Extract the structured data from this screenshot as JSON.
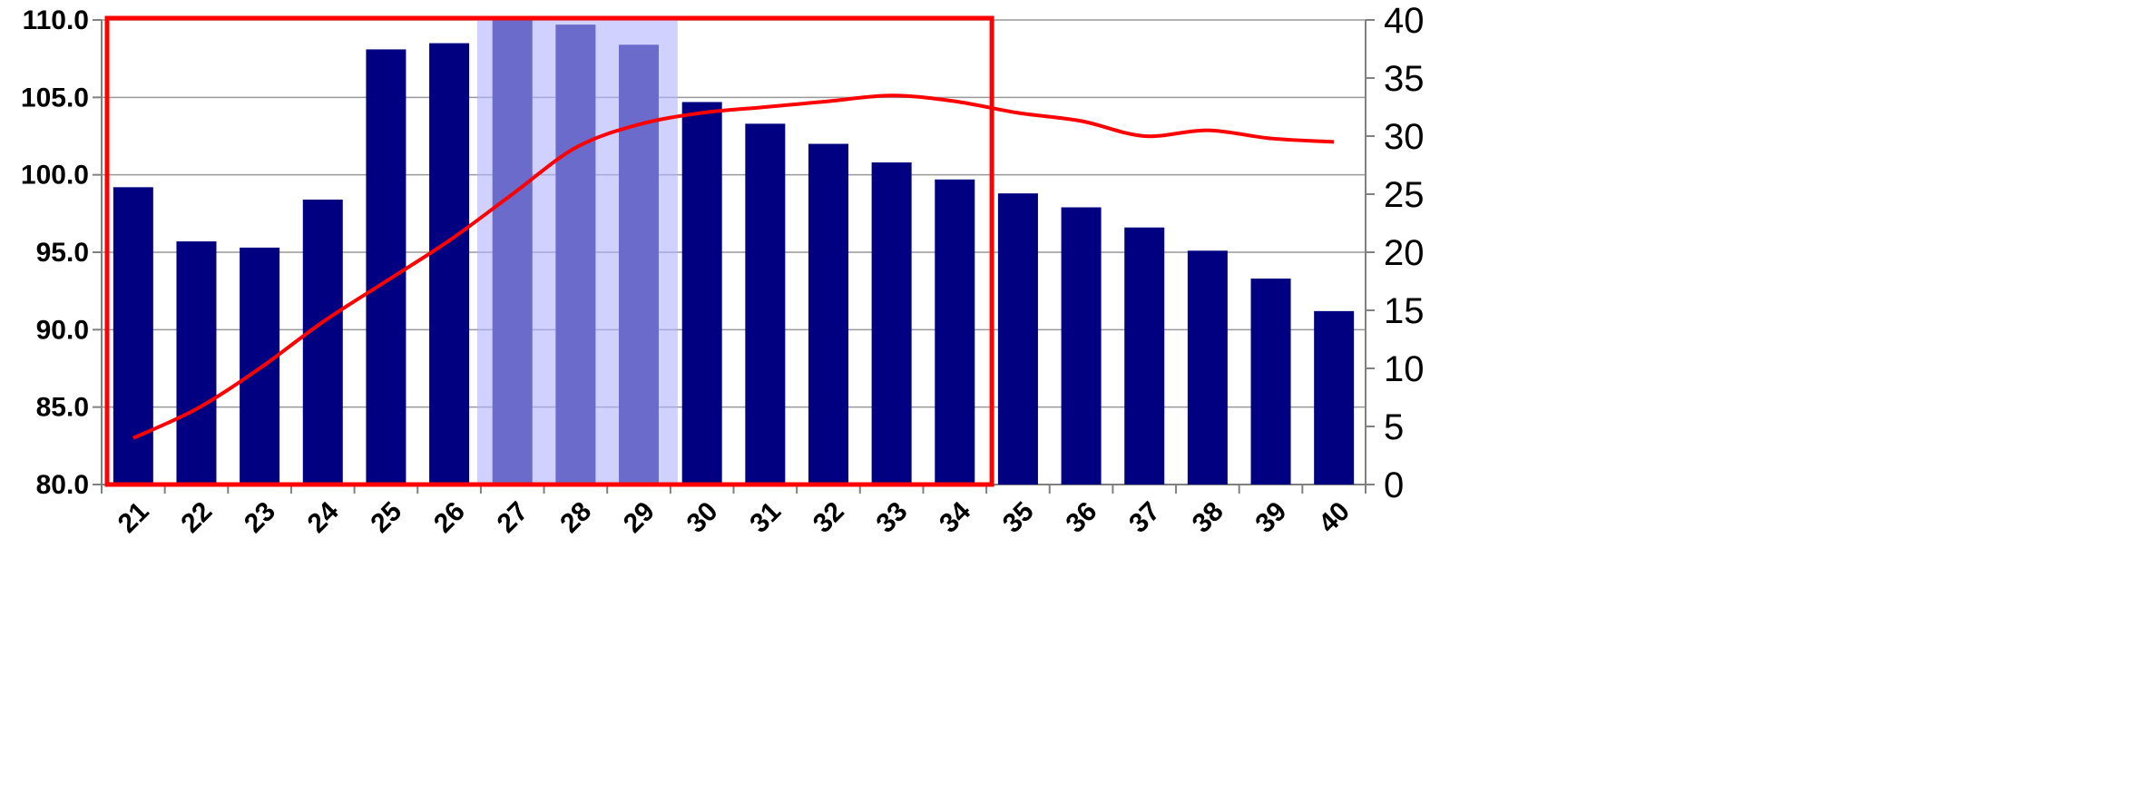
{
  "chart_data": {
    "type": "bar",
    "categories": [
      "21",
      "22",
      "23",
      "24",
      "25",
      "26",
      "27",
      "28",
      "29",
      "30",
      "31",
      "32",
      "33",
      "34",
      "35",
      "36",
      "37",
      "38",
      "39",
      "40"
    ],
    "series": [
      {
        "type": "bar",
        "axis": "left",
        "values": [
          99.2,
          95.7,
          95.3,
          98.4,
          108.1,
          108.5,
          110.0,
          109.7,
          108.4,
          104.7,
          103.3,
          102.0,
          100.8,
          99.7,
          98.8,
          97.9,
          96.6,
          95.1,
          93.3,
          91.2
        ]
      },
      {
        "type": "line",
        "axis": "right",
        "values": [
          4,
          6.5,
          10,
          14,
          17.5,
          21,
          25,
          29,
          31,
          32,
          32.5,
          33,
          33.5,
          33,
          32,
          31.3,
          30,
          30.5,
          29.8,
          29.5
        ]
      }
    ],
    "y_left": {
      "min": 80,
      "max": 110,
      "ticks": [
        "80.0",
        "85.0",
        "90.0",
        "95.0",
        "100.0",
        "105.0",
        "110.0"
      ]
    },
    "y_right": {
      "min": 0,
      "max": 40,
      "ticks": [
        "0",
        "5",
        "10",
        "15",
        "20",
        "25",
        "30",
        "35",
        "40"
      ]
    },
    "highlight_band": {
      "from_category": "27",
      "to_category": "29"
    },
    "outline_box": {
      "from_category": "21",
      "to_category": "34"
    },
    "grid": true,
    "legend": "none",
    "colors": {
      "bar": "#000080",
      "line": "#ff0000",
      "band": "#b3b3ff",
      "box": "#ff0000",
      "grid": "#999999"
    }
  }
}
